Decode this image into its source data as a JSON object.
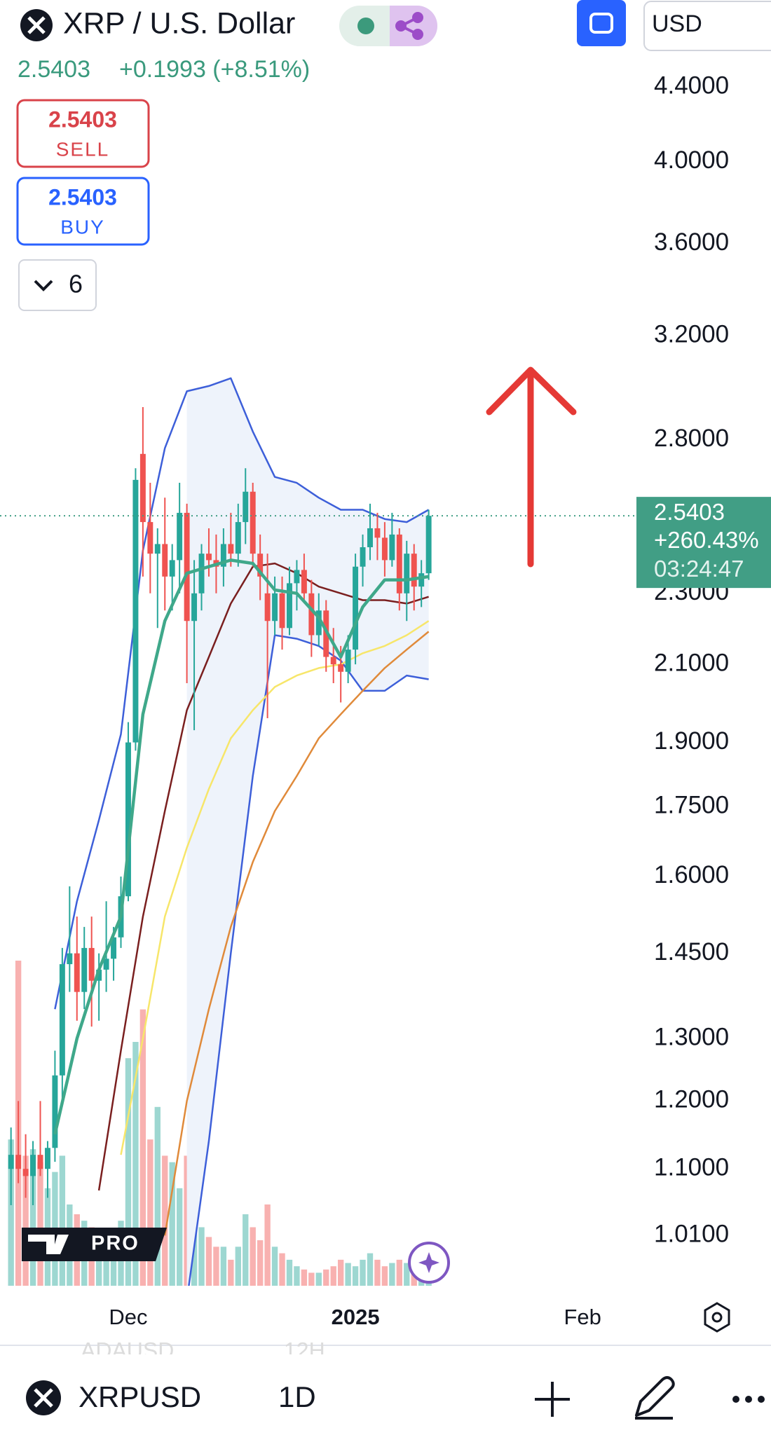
{
  "header": {
    "title": "XRP / U.S. Dollar",
    "price": "2.5403",
    "change": "+0.1993 (+8.51%)",
    "sell_price": "2.5403",
    "sell_label": "SELL",
    "buy_price": "2.5403",
    "buy_label": "BUY",
    "indicator_count": "6",
    "currency": "USD"
  },
  "chart_data": {
    "type": "candlestick",
    "log_scale": true,
    "ylim": [
      0.947,
      4.92
    ],
    "yticks": [
      {
        "value": 4.4,
        "label": "4.4000"
      },
      {
        "value": 4.0,
        "label": "4.0000"
      },
      {
        "value": 3.6,
        "label": "3.6000"
      },
      {
        "value": 3.2,
        "label": "3.2000"
      },
      {
        "value": 2.8,
        "label": "2.8000"
      },
      {
        "value": 2.3,
        "label": "2.3000"
      },
      {
        "value": 2.1,
        "label": "2.1000"
      },
      {
        "value": 1.9,
        "label": "1.9000"
      },
      {
        "value": 1.75,
        "label": "1.7500"
      },
      {
        "value": 1.6,
        "label": "1.6000"
      },
      {
        "value": 1.45,
        "label": "1.4500"
      },
      {
        "value": 1.3,
        "label": "1.3000"
      },
      {
        "value": 1.2,
        "label": "1.2000"
      },
      {
        "value": 1.1,
        "label": "1.1000"
      },
      {
        "value": 1.01,
        "label": "1.0100"
      }
    ],
    "xlim": [
      -1.5,
      85.25
    ],
    "xticks": [
      {
        "value": 16,
        "label": "Dec"
      },
      {
        "value": 47,
        "label": "2025"
      },
      {
        "value": 78,
        "label": "Feb"
      }
    ],
    "x": [
      0,
      1,
      2,
      3,
      4,
      5,
      6,
      7,
      8,
      9,
      10,
      11,
      12,
      13,
      14,
      15,
      16,
      17,
      18,
      19,
      20,
      21,
      22,
      23,
      24,
      25,
      26,
      27,
      28,
      29,
      30,
      31,
      32,
      33,
      34,
      35,
      36,
      37,
      38,
      39,
      40,
      41,
      42,
      43,
      44,
      45,
      46,
      47,
      48,
      49,
      50,
      51,
      52,
      53,
      54,
      55,
      56,
      57
    ],
    "open": [
      1.1,
      1.12,
      1.1,
      1.09,
      1.12,
      1.1,
      1.13,
      1.24,
      1.43,
      1.45,
      1.38,
      1.46,
      1.4,
      1.42,
      1.44,
      1.48,
      1.56,
      1.9,
      2.75,
      2.52,
      2.42,
      2.45,
      2.35,
      2.4,
      2.55,
      2.22,
      2.3,
      2.42,
      2.4,
      2.38,
      2.45,
      2.42,
      2.52,
      2.62,
      2.42,
      2.3,
      2.22,
      2.3,
      2.2,
      2.33,
      2.37,
      2.3,
      2.18,
      2.25,
      2.12,
      2.1,
      2.08,
      2.14,
      2.38,
      2.44,
      2.5,
      2.47,
      2.4,
      2.48,
      2.3,
      2.42,
      2.32,
      2.36
    ],
    "high": [
      1.16,
      1.2,
      1.15,
      1.14,
      1.2,
      1.14,
      1.28,
      1.46,
      1.58,
      1.52,
      1.5,
      1.52,
      1.45,
      1.55,
      1.5,
      1.6,
      1.95,
      2.7,
      2.92,
      2.65,
      2.5,
      2.6,
      2.45,
      2.65,
      2.58,
      2.4,
      2.45,
      2.5,
      2.48,
      2.5,
      2.55,
      2.58,
      2.7,
      2.65,
      2.48,
      2.42,
      2.35,
      2.35,
      2.38,
      2.4,
      2.42,
      2.34,
      2.3,
      2.28,
      2.2,
      2.15,
      2.18,
      2.42,
      2.48,
      2.58,
      2.55,
      2.52,
      2.55,
      2.5,
      2.46,
      2.45,
      2.4,
      2.56
    ],
    "low": [
      1.05,
      1.08,
      1.06,
      1.05,
      1.09,
      1.06,
      1.11,
      1.2,
      1.38,
      1.33,
      1.35,
      1.32,
      1.33,
      1.38,
      1.4,
      1.46,
      1.55,
      1.88,
      2.35,
      2.3,
      2.2,
      2.25,
      2.25,
      2.3,
      2.05,
      1.93,
      2.25,
      2.35,
      2.3,
      2.32,
      2.38,
      2.38,
      2.45,
      2.38,
      2.28,
      1.96,
      2.18,
      2.14,
      2.18,
      2.25,
      2.28,
      2.12,
      2.15,
      2.08,
      2.05,
      2.0,
      2.05,
      2.1,
      2.32,
      2.4,
      2.4,
      2.35,
      2.38,
      2.25,
      2.22,
      2.25,
      2.26,
      2.34
    ],
    "close": [
      1.12,
      1.1,
      1.09,
      1.12,
      1.1,
      1.13,
      1.24,
      1.43,
      1.45,
      1.38,
      1.46,
      1.4,
      1.42,
      1.44,
      1.48,
      1.56,
      1.9,
      2.66,
      2.52,
      2.42,
      2.45,
      2.35,
      2.4,
      2.55,
      2.22,
      2.3,
      2.42,
      2.4,
      2.38,
      2.45,
      2.42,
      2.52,
      2.62,
      2.42,
      2.35,
      2.22,
      2.3,
      2.2,
      2.33,
      2.37,
      2.3,
      2.18,
      2.25,
      2.12,
      2.1,
      2.08,
      2.14,
      2.38,
      2.44,
      2.5,
      2.47,
      2.4,
      2.48,
      2.3,
      2.42,
      2.32,
      2.36,
      2.5403
    ],
    "up_color": "#26a69a",
    "down_color": "#ef5350",
    "volume": {
      "ylim": [
        0,
        100
      ],
      "values": [
        45,
        100,
        40,
        42,
        38,
        30,
        35,
        40,
        25,
        22,
        20,
        18,
        15,
        17,
        12,
        20,
        70,
        75,
        85,
        45,
        55,
        40,
        38,
        30,
        40,
        28,
        18,
        15,
        12,
        12,
        8,
        12,
        22,
        18,
        14,
        25,
        12,
        10,
        8,
        6,
        5,
        4,
        4,
        5,
        6,
        8,
        7,
        6,
        8,
        10,
        8,
        6,
        7,
        8,
        7,
        5,
        4,
        3
      ]
    },
    "indicators": {
      "x": [
        6,
        9,
        12,
        15,
        18,
        21,
        24,
        27,
        30,
        33,
        36,
        39,
        42,
        45,
        48,
        51,
        54,
        57
      ],
      "bollinger": {
        "color": "#3d5fd9",
        "fill": "#eef3fb",
        "basis_color": "#3fa88a",
        "upper": [
          1.35,
          1.55,
          1.72,
          1.92,
          2.43,
          2.77,
          2.98,
          3.0,
          3.03,
          2.83,
          2.67,
          2.65,
          2.6,
          2.56,
          2.56,
          2.53,
          2.52,
          2.56
        ],
        "lower": [
          null,
          null,
          null,
          null,
          null,
          null,
          0.93,
          1.14,
          1.45,
          1.82,
          2.18,
          2.17,
          2.15,
          2.11,
          2.03,
          2.03,
          2.07,
          2.06
        ],
        "basis": [
          1.15,
          1.3,
          1.42,
          1.52,
          1.97,
          2.22,
          2.36,
          2.38,
          2.4,
          2.39,
          2.31,
          2.3,
          2.23,
          2.12,
          2.26,
          2.34,
          2.34,
          2.35
        ]
      },
      "moving_averages": [
        {
          "color": "#7a1f1f",
          "values": [
            null,
            null,
            1.07,
            1.28,
            1.52,
            1.74,
            1.98,
            2.12,
            2.27,
            2.38,
            2.39,
            2.36,
            2.32,
            2.3,
            2.28,
            2.28,
            2.27,
            2.29
          ]
        },
        {
          "color": "#f7e66a",
          "values": [
            null,
            null,
            null,
            1.12,
            1.3,
            1.52,
            1.66,
            1.79,
            1.91,
            1.98,
            2.04,
            2.07,
            2.09,
            2.1,
            2.13,
            2.15,
            2.18,
            2.22
          ]
        },
        {
          "color": "#e08a3a",
          "values": [
            null,
            null,
            null,
            null,
            null,
            1.01,
            1.2,
            1.35,
            1.5,
            1.63,
            1.74,
            1.82,
            1.91,
            1.97,
            2.03,
            2.09,
            2.14,
            2.19
          ]
        }
      ]
    },
    "last_price": {
      "value": 2.5403,
      "change": "+260.43%",
      "countdown": "03:24:47",
      "color": "#419e85"
    }
  },
  "footer": {
    "logo": "PRO",
    "hidden_symbol": "ADAUSD",
    "hidden_interval": "12H",
    "symbol": "XRPUSD",
    "interval": "1D"
  }
}
